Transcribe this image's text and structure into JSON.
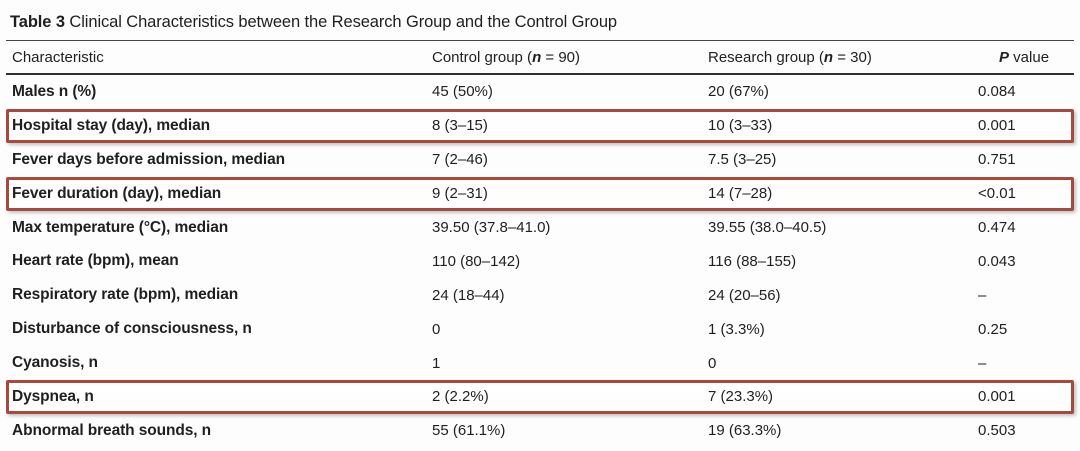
{
  "title": {
    "label": "Table 3",
    "text": " Clinical Characteristics between the Research Group and the Control Group"
  },
  "header": {
    "characteristic": "Characteristic",
    "control": {
      "prefix": "Control group (",
      "n": "n",
      "suffix": " = 90)"
    },
    "research": {
      "prefix": "Research group (",
      "n": "n",
      "suffix": " = 30)"
    },
    "pvalue": {
      "p": "P",
      "rest": " value"
    }
  },
  "colors": {
    "highlight_border": "#a64a3d",
    "rule": "#303030",
    "text": "#1f1f1f"
  },
  "rows": [
    {
      "characteristic": "Males n (%)",
      "control": "45 (50%)",
      "research": "20 (67%)",
      "p": "0.084",
      "highlighted": false
    },
    {
      "characteristic": "Hospital stay (day), median",
      "control": "8 (3–15)",
      "research": "10 (3–33)",
      "p": "0.001",
      "highlighted": true
    },
    {
      "characteristic": "Fever days before admission, median",
      "control": "7 (2–46)",
      "research": "7.5 (3–25)",
      "p": "0.751",
      "highlighted": false
    },
    {
      "characteristic": "Fever duration (day), median",
      "control": "9 (2–31)",
      "research": "14 (7–28)",
      "p": "<0.01",
      "highlighted": true
    },
    {
      "characteristic": "Max temperature (°C), median",
      "control": "39.50 (37.8–41.0)",
      "research": "39.55 (38.0–40.5)",
      "p": "0.474",
      "highlighted": false
    },
    {
      "characteristic": "Heart rate (bpm), mean",
      "control": "110 (80–142)",
      "research": "116 (88–155)",
      "p": "0.043",
      "highlighted": false
    },
    {
      "characteristic": "Respiratory rate (bpm), median",
      "control": "24 (18–44)",
      "research": "24 (20–56)",
      "p": "–",
      "highlighted": false
    },
    {
      "characteristic": "Disturbance of consciousness, n",
      "control": "0",
      "research": "1 (3.3%)",
      "p": "0.25",
      "highlighted": false
    },
    {
      "characteristic": "Cyanosis, n",
      "control": "1",
      "research": "0",
      "p": "–",
      "highlighted": false
    },
    {
      "characteristic": "Dyspnea, n",
      "control": "2 (2.2%)",
      "research": "7 (23.3%)",
      "p": "0.001",
      "highlighted": true
    },
    {
      "characteristic": "Abnormal breath sounds, n",
      "control": "55 (61.1%)",
      "research": "19 (63.3%)",
      "p": "0.503",
      "highlighted": false
    }
  ]
}
